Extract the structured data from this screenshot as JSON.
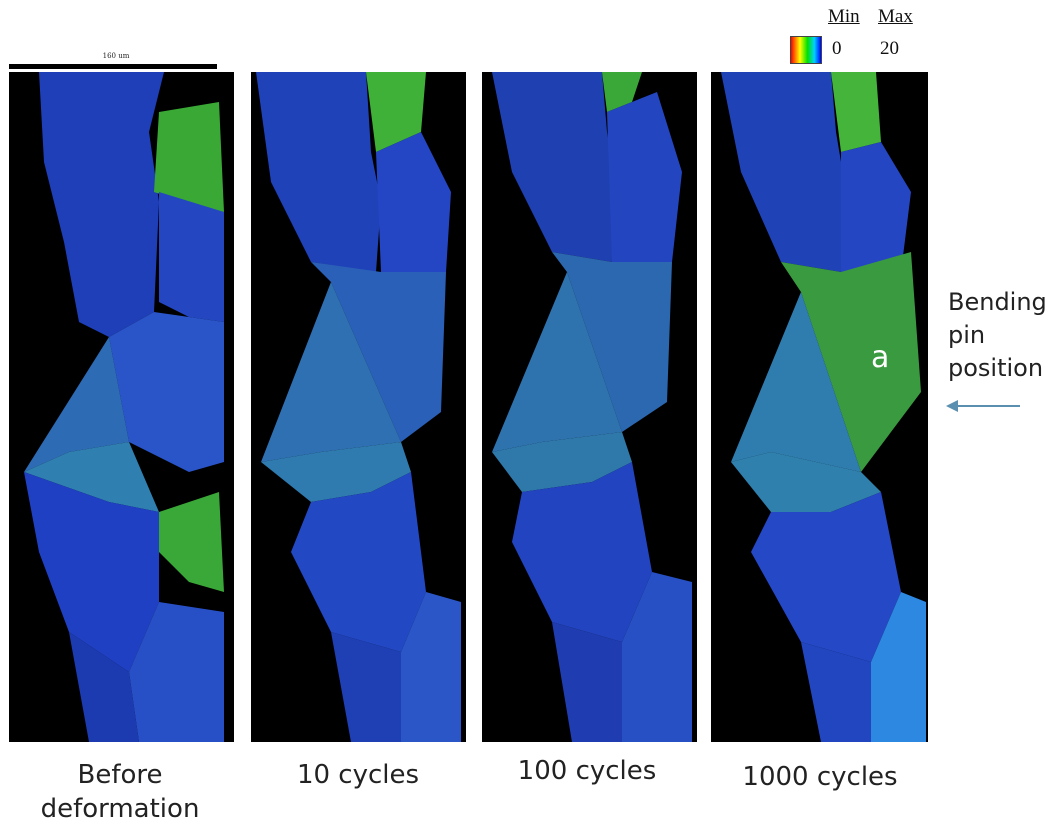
{
  "scale_bar": {
    "text": "160 um"
  },
  "legend": {
    "min_label": "Min",
    "max_label": "Max",
    "min_value": "0",
    "max_value": "20",
    "gradient_colors": [
      "#ff0000",
      "#ffff00",
      "#00e000",
      "#00d0ff",
      "#0000ff"
    ]
  },
  "panels": [
    {
      "caption": "Before\ndeformation"
    },
    {
      "caption": "10 cycles"
    },
    {
      "caption": "100 cycles"
    },
    {
      "caption": "1000 cycles"
    }
  ],
  "grain_label": "a",
  "pin": {
    "label": "Bending\npin\nposition",
    "arrow_color": "#5b8fb0"
  },
  "colors": {
    "base_blue": "#1f3fb8",
    "green": "#3aa832",
    "background": "#000000"
  }
}
